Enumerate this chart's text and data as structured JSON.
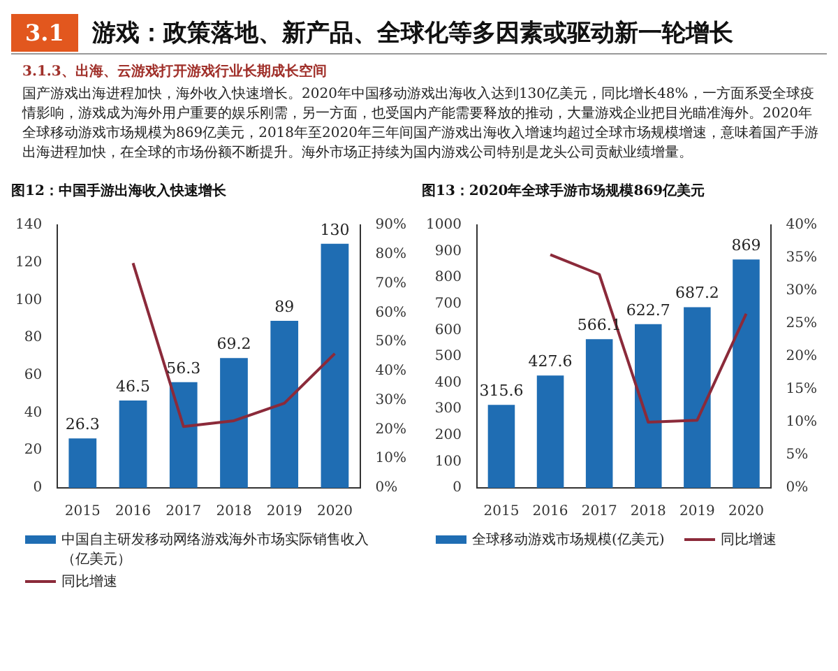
{
  "chart_data": [
    {
      "type": "other",
      "title": "游戏：政策落地、新产品、全球化等多因素或驱动新一轮增长",
      "subtitle": "3.1.3、出海、云游戏打开游戏行业长期成长空间",
      "annotations": [
        "3.1",
        "国产游戏出海进程加快，海外收入快速增长。2020年中国移动游戏出海收入达到130亿美元，同比增长48%，一方面系受全球疫情影响，游戏成为海外用户重要的娱乐刚需，另一方面，也受国内产能需要释放的推动，大量游戏企业把目光瞄准海外。2020年全球移动游戏市场规模为869亿美元，2018年至2020年三年间国产游戏出海收入增速均超过全球市场规模增速，意味着国产手游出海进程加快，在全球的市场份额不断提升。海外市场正持续为国内游戏公司特别是龙头公司贡献业绩增量。"
      ]
    },
    {
      "type": "bar",
      "title": "图12：中国手游出海收入快速增长",
      "categories": [
        "2015",
        "2016",
        "2017",
        "2018",
        "2019",
        "2020"
      ],
      "legend": "bottom",
      "marker": "none",
      "series": [
        {
          "type": "bar",
          "name": "中国自主研发移动网络游戏海外市场实际销售收入（亿美元）",
          "color": "#1f6db3",
          "values": [
            26.3,
            46.5,
            56.3,
            69.2,
            89,
            130
          ],
          "value_labels": [
            "26.3",
            "46.5",
            "56.3",
            "69.2",
            "89",
            "130"
          ]
        },
        {
          "type": "line",
          "axis": "y2",
          "name": "同比增速",
          "color": "#8b2a3a",
          "values": [
            null,
            77,
            21,
            23,
            29,
            46
          ]
        }
      ],
      "ylim": [
        0,
        140
      ],
      "yticks": [
        0,
        20,
        40,
        60,
        80,
        100,
        120,
        140
      ],
      "y2lim": [
        0,
        90
      ],
      "y2ticks": [
        {
          "value": 0,
          "label": "0%"
        },
        {
          "value": 10,
          "label": "10%"
        },
        {
          "value": 20,
          "label": "20%"
        },
        {
          "value": 30,
          "label": "30%"
        },
        {
          "value": 40,
          "label": "40%"
        },
        {
          "value": 50,
          "label": "50%"
        },
        {
          "value": 60,
          "label": "60%"
        },
        {
          "value": 70,
          "label": "70%"
        },
        {
          "value": 80,
          "label": "80%"
        },
        {
          "value": 90,
          "label": "90%"
        }
      ]
    },
    {
      "type": "bar",
      "title": "图13：2020年全球手游市场规模869亿美元",
      "categories": [
        "2015",
        "2016",
        "2017",
        "2018",
        "2019",
        "2020"
      ],
      "legend": "bottom",
      "marker": "none",
      "series": [
        {
          "type": "bar",
          "name": "全球移动游戏市场规模(亿美元)",
          "color": "#1f6db3",
          "values": [
            315.6,
            427.6,
            566.1,
            622.7,
            687.2,
            869
          ],
          "value_labels": [
            "315.6",
            "427.6",
            "566.1",
            "622.7",
            "687.2",
            "869"
          ]
        },
        {
          "type": "line",
          "axis": "y2",
          "name": "同比增速",
          "color": "#8b2a3a",
          "values": [
            null,
            35.5,
            32.5,
            10,
            10.3,
            26.5
          ]
        }
      ],
      "ylim": [
        0,
        1000
      ],
      "yticks": [
        0,
        100,
        200,
        300,
        400,
        500,
        600,
        700,
        800,
        900,
        1000
      ],
      "y2lim": [
        0,
        40
      ],
      "y2ticks": [
        {
          "value": 0,
          "label": "0%"
        },
        {
          "value": 5,
          "label": "5%"
        },
        {
          "value": 10,
          "label": "10%"
        },
        {
          "value": 15,
          "label": "15%"
        },
        {
          "value": 20,
          "label": "20%"
        },
        {
          "value": 25,
          "label": "25%"
        },
        {
          "value": 30,
          "label": "30%"
        },
        {
          "value": 35,
          "label": "35%"
        },
        {
          "value": 40,
          "label": "40%"
        }
      ]
    }
  ]
}
